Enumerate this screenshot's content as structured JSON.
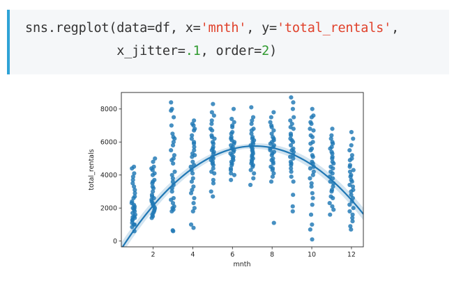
{
  "code": {
    "line1": {
      "prefix": "sns.regplot(data=df, x=",
      "x_arg": "'mnth'",
      "mid": ", y=",
      "y_arg": "'total_rentals'",
      "suffix": ","
    },
    "line2": {
      "indent": "            ",
      "prefix": "x_jitter=",
      "jitter": ".1",
      "mid": ", order=",
      "order": "2",
      "suffix": ")"
    },
    "colors": {
      "accent_border": "#2ea3d6",
      "string": "#e0412b",
      "number": "#2f9a2f",
      "background": "#f5f7f9"
    }
  },
  "chart_data": {
    "type": "scatter",
    "title": "",
    "xlabel": "mnth",
    "ylabel": "total_rentals",
    "xlim": [
      0.4,
      12.6
    ],
    "ylim": [
      -350,
      9000
    ],
    "xticks": [
      2,
      4,
      6,
      8,
      10,
      12
    ],
    "yticks": [
      0,
      2000,
      4000,
      6000,
      8000
    ],
    "grid": false,
    "point_color": "#1f77b4",
    "line_color": "#1f77b4",
    "x_jitter": 0.1,
    "regression": {
      "order": 2,
      "coefficients": [
        -1230,
        1960,
        -137.5
      ],
      "ci_band": 230
    },
    "months": [
      {
        "month": 1,
        "values": [
          1000,
          1300,
          2200,
          1600,
          3300,
          4500,
          4400,
          3100,
          1900,
          2100,
          1500,
          1700,
          2000,
          2400,
          2600,
          1100,
          850,
          600,
          1400,
          1800,
          2300,
          3900,
          4100,
          3500,
          1250,
          1450,
          2900,
          2700,
          2000,
          3700,
          1000
        ]
      },
      {
        "month": 2,
        "values": [
          1400,
          2400,
          3500,
          4300,
          4800,
          5000,
          2200,
          1800,
          2800,
          3000,
          4100,
          3700,
          1600,
          1700,
          1900,
          2100,
          2500,
          3200,
          4400,
          4500,
          4000,
          2600,
          2700,
          3300,
          2300,
          1500,
          2000,
          3600
        ]
      },
      {
        "month": 3,
        "values": [
          8400,
          8000,
          7000,
          6000,
          5500,
          4000,
          3000,
          2000,
          1800,
          2100,
          3600,
          4700,
          5200,
          6300,
          7500,
          7900,
          600,
          650,
          2300,
          2600,
          3200,
          3800,
          4200,
          4900,
          5800,
          6200,
          1900,
          2500,
          3400,
          5000,
          6500
        ]
      },
      {
        "month": 4,
        "values": [
          7300,
          7000,
          6400,
          5900,
          5200,
          4800,
          4300,
          3800,
          3300,
          2600,
          1800,
          800,
          1000,
          2000,
          2900,
          3600,
          4100,
          4600,
          5100,
          5700,
          6200,
          6700,
          7100,
          5300,
          4500,
          3100,
          2300,
          5500,
          6000,
          6800
        ]
      },
      {
        "month": 5,
        "values": [
          8300,
          7600,
          7300,
          6800,
          6400,
          6000,
          5700,
          5300,
          5000,
          4700,
          4400,
          4100,
          3700,
          3000,
          2700,
          4200,
          4600,
          5100,
          5500,
          5900,
          6300,
          6700,
          7100,
          7800,
          4900,
          5600,
          6200,
          3500,
          4800,
          5400
        ]
      },
      {
        "month": 6,
        "values": [
          8000,
          7400,
          7000,
          6600,
          6200,
          5900,
          5600,
          5300,
          5000,
          4700,
          4400,
          4100,
          3700,
          5800,
          5400,
          5100,
          4900,
          6100,
          6500,
          6900,
          7200,
          4600,
          4300,
          5500,
          5200,
          6000,
          6300,
          4800,
          5700,
          4000
        ]
      },
      {
        "month": 7,
        "values": [
          8100,
          7500,
          7100,
          6800,
          6500,
          6200,
          5900,
          5600,
          5300,
          5000,
          4700,
          4300,
          3800,
          3400,
          5800,
          5500,
          5200,
          4900,
          4600,
          6000,
          6300,
          6700,
          7300,
          5100,
          4500,
          5700,
          6100,
          4100,
          5400,
          4800
        ]
      },
      {
        "month": 8,
        "values": [
          7800,
          7500,
          7200,
          6900,
          6500,
          6100,
          5800,
          5500,
          5200,
          4900,
          4500,
          4100,
          3600,
          1100,
          5000,
          5400,
          5700,
          6000,
          6300,
          6700,
          7000,
          4700,
          4300,
          3900,
          5300,
          5900,
          6200,
          4800,
          5600,
          4400
        ]
      },
      {
        "month": 9,
        "values": [
          8700,
          8400,
          8000,
          7500,
          7100,
          6800,
          6500,
          6200,
          5800,
          5400,
          5000,
          4600,
          4200,
          3600,
          2800,
          2100,
          1800,
          4800,
          5200,
          5600,
          6000,
          6400,
          6900,
          7300,
          4400,
          3900,
          5500,
          6100,
          5100,
          4700
        ]
      },
      {
        "month": 10,
        "values": [
          8000,
          7600,
          7200,
          6800,
          6400,
          6000,
          5600,
          5200,
          4800,
          4400,
          4000,
          3500,
          2900,
          2200,
          1600,
          700,
          100,
          1000,
          2600,
          3300,
          3800,
          4200,
          4700,
          5100,
          5500,
          5900,
          6300,
          6700,
          7100,
          7500,
          4500
        ]
      },
      {
        "month": 11,
        "values": [
          6800,
          6400,
          6000,
          5700,
          5400,
          5100,
          4800,
          4500,
          4200,
          3900,
          3600,
          3300,
          3000,
          2700,
          2300,
          1600,
          1900,
          2600,
          3100,
          3500,
          3800,
          4100,
          4400,
          4700,
          5000,
          5300,
          5600,
          5900,
          6200,
          2100
        ]
      },
      {
        "month": 12,
        "values": [
          6600,
          6200,
          5800,
          5500,
          5200,
          4900,
          4600,
          4300,
          4000,
          3700,
          3400,
          3100,
          2800,
          2400,
          2000,
          1600,
          1200,
          700,
          900,
          1400,
          1800,
          2200,
          2600,
          3000,
          3300,
          3600,
          3900,
          4200,
          4500,
          5000
        ]
      }
    ]
  }
}
